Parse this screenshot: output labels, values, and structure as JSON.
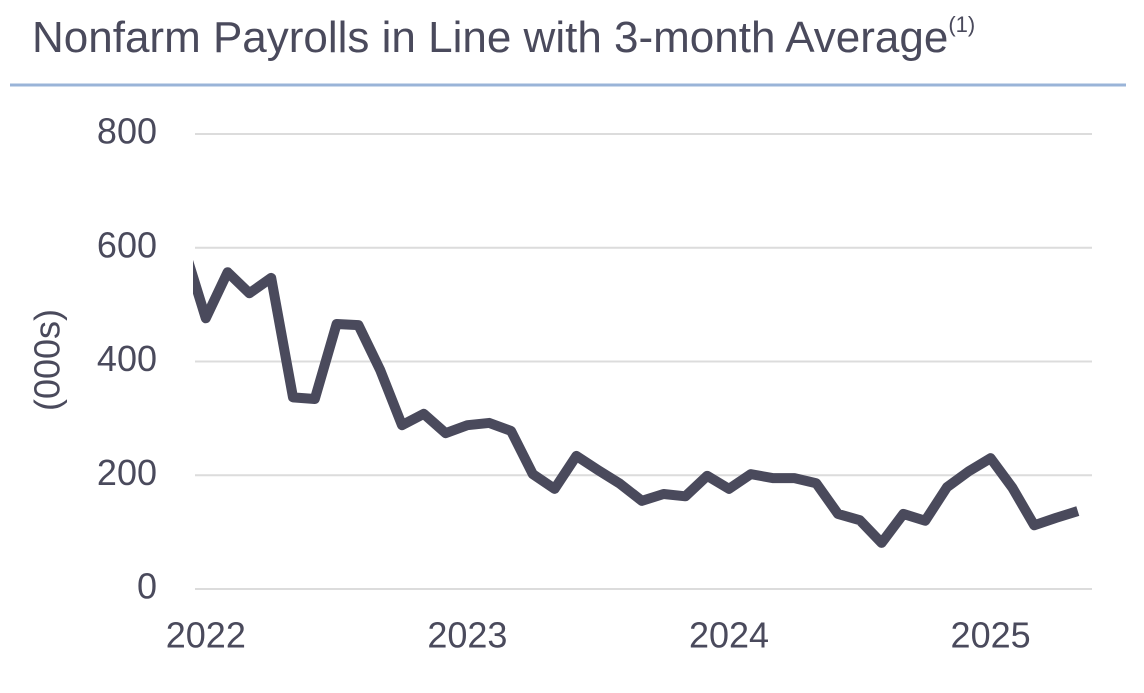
{
  "chart_data": {
    "type": "line",
    "title": "Nonfarm Payrolls in Line with 3-month Average",
    "title_note": "(1)",
    "y_label": "(000s)",
    "categories": [
      null,
      "2022",
      null,
      null,
      null,
      null,
      null,
      null,
      null,
      null,
      null,
      null,
      null,
      "2023",
      null,
      null,
      null,
      null,
      null,
      null,
      null,
      null,
      null,
      null,
      null,
      "2024",
      null,
      null,
      null,
      null,
      null,
      null,
      null,
      null,
      null,
      null,
      null,
      "2025",
      null,
      null,
      null,
      null
    ],
    "series": [
      {
        "name": "Nonfarm Payrolls",
        "color": "#4a4a5c",
        "values": [
          600,
          476,
          557,
          520,
          547,
          337,
          334,
          466,
          464,
          385,
          288,
          308,
          274,
          288,
          292,
          278,
          202,
          176,
          234,
          209,
          185,
          155,
          167,
          163,
          199,
          176,
          202,
          195,
          195,
          186,
          132,
          121,
          81,
          132,
          120,
          179,
          207,
          230,
          178,
          112,
          125,
          137
        ]
      }
    ],
    "ylim": [
      0,
      800
    ],
    "yticks": [
      0,
      200,
      400,
      600,
      800
    ],
    "grid": true
  }
}
